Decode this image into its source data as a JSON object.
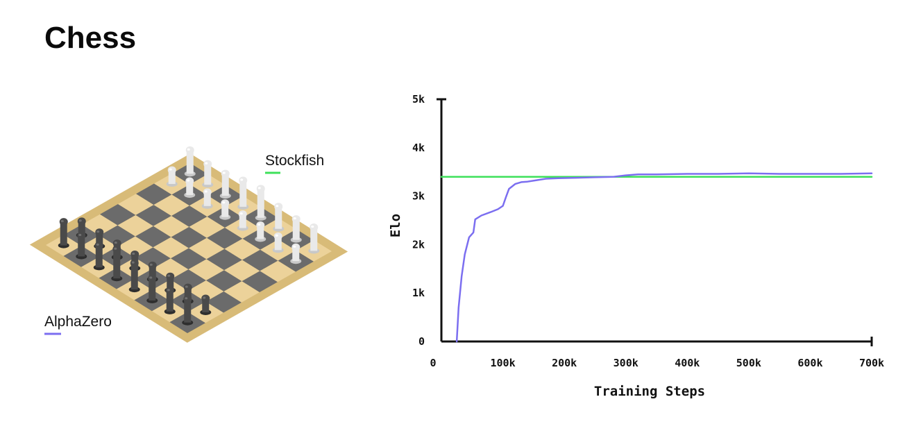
{
  "page": {
    "title": "Chess"
  },
  "illustration": {
    "subject": "isometric chessboard with white and dark pieces",
    "colors": {
      "light_square": "#ecd29a",
      "dark_square": "#6b6b6b",
      "board_edge": "#d8bb78"
    },
    "legend": [
      {
        "label": "Stockfish",
        "color": "#3ee05a"
      },
      {
        "label": "AlphaZero",
        "color": "#7b6ef0"
      }
    ]
  },
  "chart_data": {
    "type": "line",
    "xlabel": "Training Steps",
    "ylabel": "Elo",
    "xlim": [
      0,
      700
    ],
    "ylim": [
      0,
      5000
    ],
    "x_ticks": [
      0,
      100,
      200,
      300,
      400,
      500,
      600,
      700
    ],
    "x_tick_labels": [
      "0",
      "100k",
      "200k",
      "300k",
      "400k",
      "500k",
      "600k",
      "700k"
    ],
    "y_ticks": [
      0,
      1000,
      2000,
      3000,
      4000,
      5000
    ],
    "y_tick_labels": [
      "0",
      "1k",
      "2k",
      "3k",
      "4k",
      "5k"
    ],
    "grid": false,
    "legend": "beside-illustration",
    "series": [
      {
        "name": "AlphaZero",
        "color": "#7b6ef0",
        "points": [
          [
            25,
            0
          ],
          [
            28,
            700
          ],
          [
            33,
            1350
          ],
          [
            38,
            1800
          ],
          [
            45,
            2150
          ],
          [
            52,
            2250
          ],
          [
            55,
            2520
          ],
          [
            65,
            2600
          ],
          [
            80,
            2670
          ],
          [
            92,
            2730
          ],
          [
            100,
            2800
          ],
          [
            105,
            2980
          ],
          [
            110,
            3150
          ],
          [
            120,
            3250
          ],
          [
            130,
            3290
          ],
          [
            140,
            3300
          ],
          [
            155,
            3330
          ],
          [
            170,
            3360
          ],
          [
            190,
            3370
          ],
          [
            220,
            3380
          ],
          [
            250,
            3390
          ],
          [
            280,
            3400
          ],
          [
            300,
            3430
          ],
          [
            320,
            3450
          ],
          [
            350,
            3450
          ],
          [
            400,
            3460
          ],
          [
            450,
            3460
          ],
          [
            500,
            3470
          ],
          [
            550,
            3460
          ],
          [
            600,
            3460
          ],
          [
            650,
            3460
          ],
          [
            700,
            3470
          ]
        ]
      },
      {
        "name": "Stockfish",
        "color": "#3ee05a",
        "points": [
          [
            0,
            3400
          ],
          [
            700,
            3400
          ]
        ]
      }
    ]
  }
}
